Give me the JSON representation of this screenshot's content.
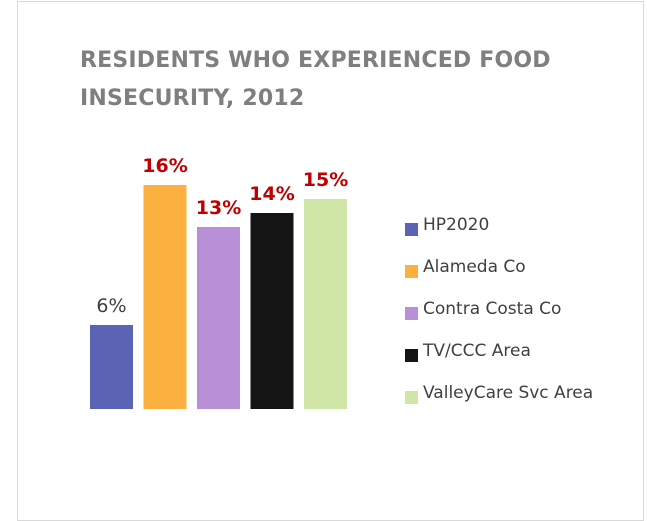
{
  "chart_data": {
    "type": "bar",
    "title": "RESIDENTS WHO EXPERIENCED FOOD INSECURITY, 2012",
    "categories": [
      "HP2020",
      "Alameda Co",
      "Contra Costa Co",
      "TV/CCC Area",
      "ValleyCare Svc Area"
    ],
    "values": [
      6,
      16,
      13,
      14,
      15
    ],
    "data_labels": [
      "6%",
      "16%",
      "13%",
      "14%",
      "15%"
    ],
    "colors": [
      "#5b63b5",
      "#fbb040",
      "#b98fd8",
      "#141414",
      "#cfe6a6"
    ],
    "label_colors": [
      "#404040",
      "#c00000",
      "#c00000",
      "#c00000",
      "#c00000"
    ],
    "label_bold": [
      false,
      true,
      true,
      true,
      true
    ],
    "ylim": [
      0,
      16
    ],
    "xlabel": "",
    "ylabel": "",
    "legend_position": "right",
    "grid": false
  }
}
